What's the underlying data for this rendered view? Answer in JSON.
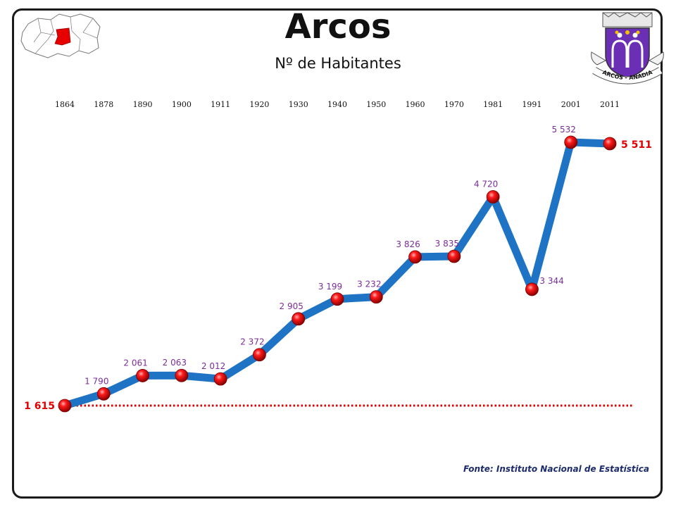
{
  "header": {
    "title": "Arcos",
    "subtitle": "Nº de Habitantes"
  },
  "source_note": "Fonte: Instituto Nacional de Estatística",
  "crest": {
    "motto": "ARCOS - ANADIA"
  },
  "colors": {
    "line": "#1f73c4",
    "marker": "#e60000",
    "value_label": "#7b2d9a",
    "emphasis_label": "#e00000",
    "baseline": "#e00000"
  },
  "chart_data": {
    "type": "line",
    "title": "Nº de Habitantes",
    "categories": [
      "1864",
      "1878",
      "1890",
      "1900",
      "1911",
      "1920",
      "1930",
      "1940",
      "1950",
      "1960",
      "1970",
      "1981",
      "1991",
      "2001",
      "2011"
    ],
    "series": [
      {
        "values": [
          1615,
          1790,
          2061,
          2063,
          2012,
          2372,
          2905,
          3199,
          3232,
          3826,
          3835,
          4720,
          3344,
          5532,
          5511
        ]
      }
    ],
    "data_labels": [
      "1 615",
      "1 790",
      "2 061",
      "2 063",
      "2 012",
      "2 372",
      "2 905",
      "3 199",
      "3 232",
      "3 826",
      "3 835",
      "4 720",
      "3 344",
      "5 532",
      "5 511"
    ],
    "reference_line": {
      "value": 1615,
      "style": "dotted"
    },
    "x_axis_position": "top",
    "grid": false,
    "legend": "none"
  }
}
